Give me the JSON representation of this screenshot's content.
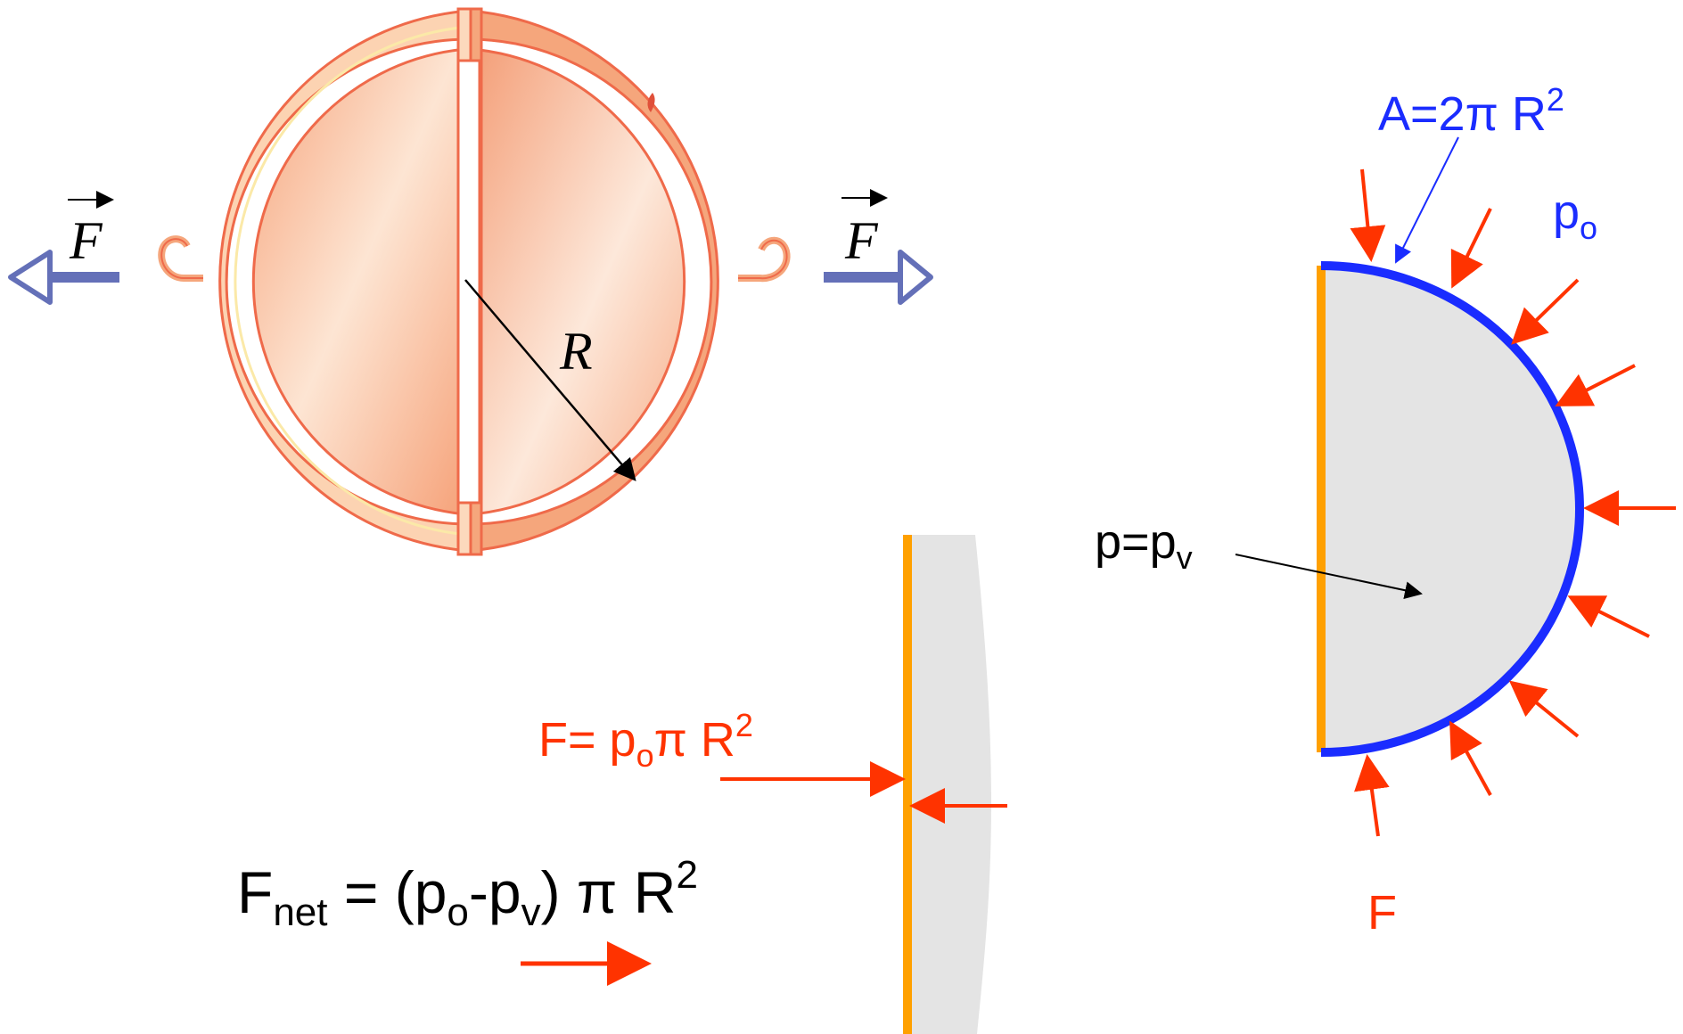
{
  "colors": {
    "shell_outer": "#f5a67c",
    "shell_light": "#fcd5b5",
    "shell_inner": "#f8b48c",
    "shell_edge": "#ef6a4a",
    "force_arrow": "#6470b8",
    "pressure_arrow": "#ff3300",
    "area_blue": "#1a2cff",
    "plate_orange": "#ffa000",
    "fluid_gray": "#e4e4e4",
    "black": "#000000"
  },
  "hemispheres": {
    "force_left": "F",
    "force_right": "F",
    "radius_label": "R"
  },
  "hemisphere_section": {
    "area_label": "A=2π R",
    "area_sup": "2",
    "outside_pressure": "p",
    "outside_pressure_sub": "o",
    "inside_pressure": "p=p",
    "inside_pressure_sub": "v",
    "force_label": "F"
  },
  "plate_diagram": {
    "force_prefix": "F= p",
    "force_sub": "o",
    "force_suffix": "π R",
    "force_sup": "2"
  },
  "net_force": {
    "F": "F",
    "F_sub": "net",
    "eq_open": " = (p",
    "po_sub": "o",
    "minus_p": "-p",
    "pv_sub": "v",
    "close": ") π R",
    "sup": "2"
  }
}
